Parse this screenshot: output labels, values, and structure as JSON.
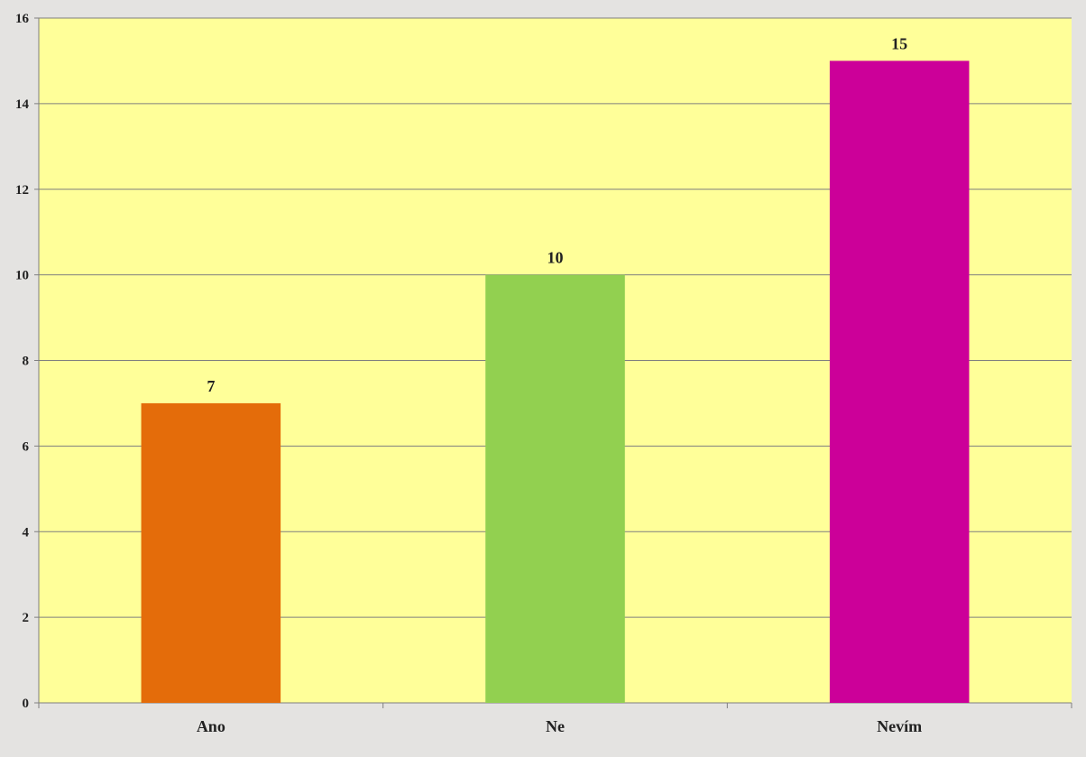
{
  "chart_data": {
    "type": "bar",
    "categories": [
      "Ano",
      "Ne",
      "Nevím"
    ],
    "values": [
      7,
      10,
      15
    ],
    "colors": [
      "#e46c0a",
      "#92d050",
      "#cc0099"
    ],
    "plot_background": "#ffff99",
    "frame_background": "#e4e3e1",
    "ylim": [
      0,
      16
    ],
    "yticks": [
      0,
      2,
      4,
      6,
      8,
      10,
      12,
      14,
      16
    ],
    "grid": true,
    "data_labels": true,
    "legend": "none"
  }
}
